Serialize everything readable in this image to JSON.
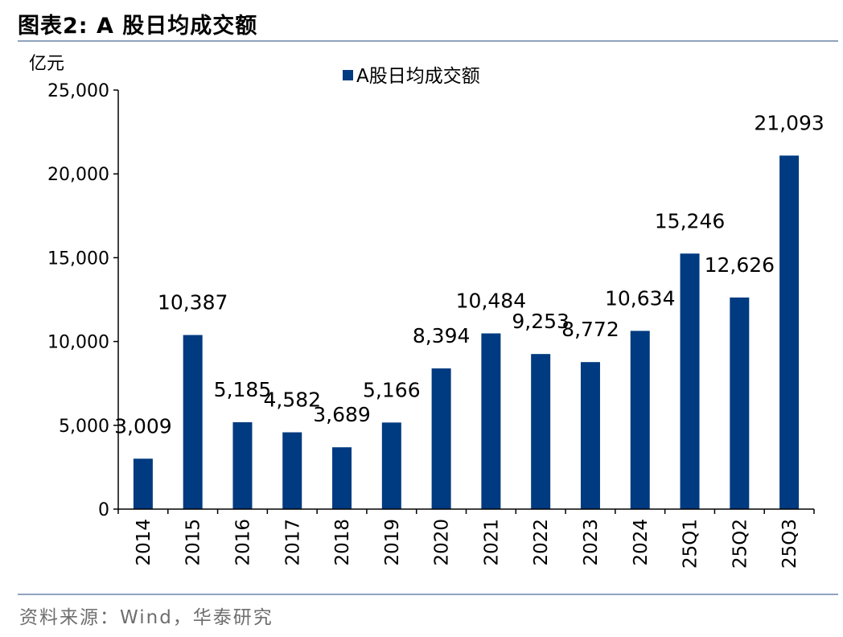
{
  "header": {
    "title": "图表2:  A 股日均成交额"
  },
  "footer": {
    "source": "资料来源：Wind，华泰研究"
  },
  "chart_data": {
    "type": "bar",
    "title": "A股日均成交额",
    "ylabel": "亿元",
    "xlabel": "",
    "ylim": [
      0,
      25000
    ],
    "yticks": [
      0,
      5000,
      10000,
      15000,
      20000,
      25000
    ],
    "ytick_labels": [
      "0",
      "5,000",
      "10,000",
      "15,000",
      "20,000",
      "25,000"
    ],
    "legend": {
      "position": "top-center",
      "entries": [
        "A股日均成交额"
      ]
    },
    "grid": false,
    "bar_color": "#003A80",
    "categories": [
      "2014",
      "2015",
      "2016",
      "2017",
      "2018",
      "2019",
      "2020",
      "2021",
      "2022",
      "2023",
      "2024",
      "25Q1",
      "25Q2",
      "25Q3"
    ],
    "values": [
      3009,
      10387,
      5185,
      4582,
      3689,
      5166,
      8394,
      10484,
      9253,
      8772,
      10634,
      15246,
      12626,
      21093
    ],
    "value_labels": [
      "3,009",
      "10,387",
      "5,185",
      "4,582",
      "3,689",
      "5,166",
      "8,394",
      "10,484",
      "9,253",
      "8,772",
      "10,634",
      "15,246",
      "12,626",
      "21,093"
    ]
  }
}
